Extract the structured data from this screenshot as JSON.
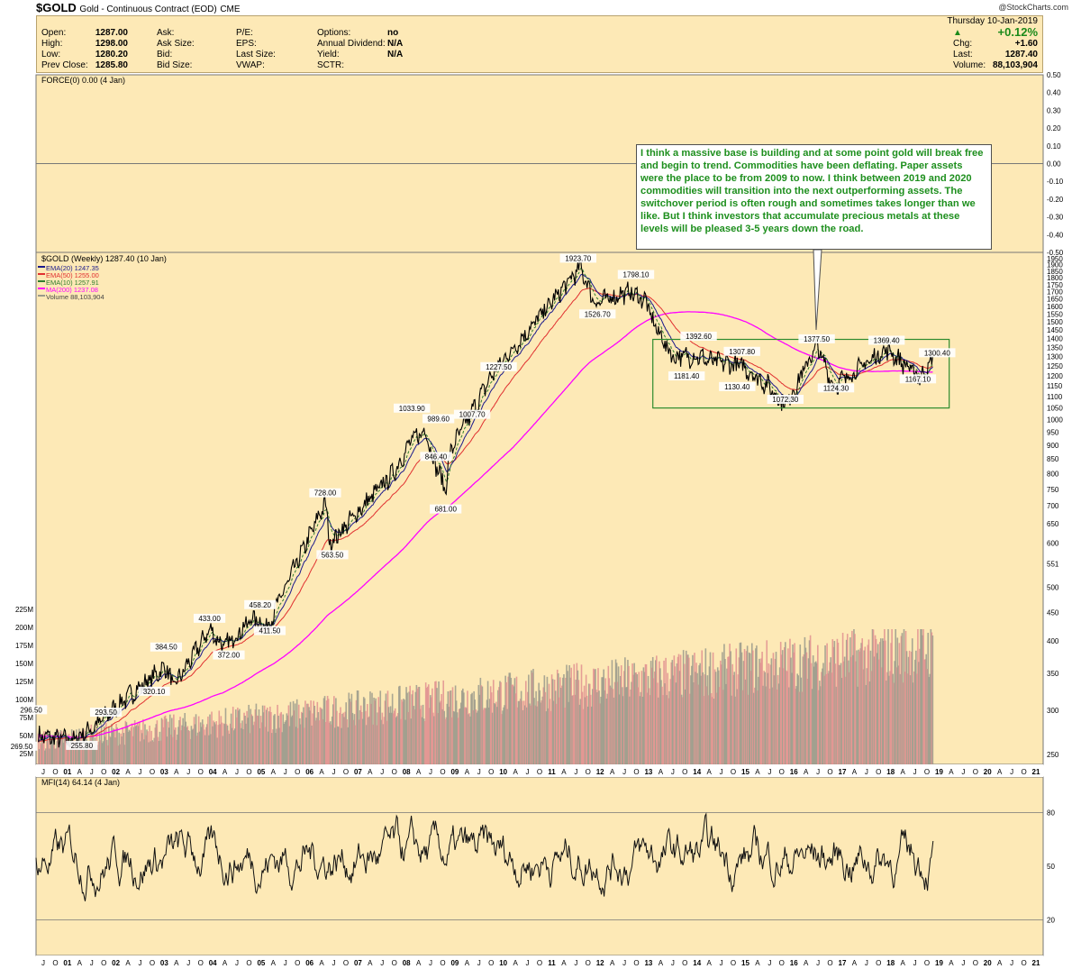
{
  "header": {
    "symbol": "$GOLD",
    "name": "Gold - Continuous Contract (EOD)",
    "exchange": "CME",
    "credit": "@StockCharts.com",
    "date": "Thursday  10-Jan-2019",
    "change_pct": "+0.12%",
    "up_arrow": "▲",
    "chg_label": "Chg:",
    "chg_value": "+1.60",
    "last_label": "Last:",
    "last_value": "1287.40",
    "volume_label": "Volume:",
    "volume_value": "88,103,904",
    "col1": [
      {
        "label": "Open:",
        "value": "1287.00"
      },
      {
        "label": "High:",
        "value": "1298.00"
      },
      {
        "label": "Low:",
        "value": "1280.20"
      },
      {
        "label": "Prev Close:",
        "value": "1285.80"
      }
    ],
    "col2": [
      "Ask:",
      "Ask Size:",
      "Bid:",
      "Bid Size:"
    ],
    "col3": [
      "P/E:",
      "EPS:",
      "Last Size:",
      "VWAP:"
    ],
    "col4": [
      {
        "label": "Options:",
        "value": "no"
      },
      {
        "label": "Annual Dividend:",
        "value": "N/A"
      },
      {
        "label": "Yield:",
        "value": "N/A"
      },
      {
        "label": "SCTR:",
        "value": ""
      }
    ]
  },
  "annotation": "I think a massive base is building and at some point gold will break free and begin to trend. Commodities have been deflating. Paper assets were the place to be from 2009 to now. I think between 2019 and 2020 commodities will transition into the next outperforming assets. The switchover period is often rough and sometimes takes longer than we like. But I think investors that accumulate precious metals at these levels will be pleased 3-5 years down the road.",
  "colors": {
    "background": "#fde9b6",
    "ema20": "#1a1a8c",
    "ema50": "#e03030",
    "ema10": "#2e7d2e",
    "ma200": "#ff00ff",
    "volume_up": "#9a9a8c",
    "volume_down": "#e09090",
    "base_box": "#2e8b2e",
    "note_text": "#1e8f1e"
  },
  "chart_data": [
    {
      "type": "line",
      "panel": "force",
      "label": "FORCE(0) 0.00 (4 Jan)",
      "ylim": [
        -0.5,
        0.5
      ],
      "yticks": [
        "0.50",
        "0.40",
        "0.30",
        "0.20",
        "0.10",
        "0.00",
        "-0.10",
        "-0.20",
        "-0.30",
        "-0.40",
        "-0.50"
      ],
      "value": 0.0
    },
    {
      "type": "line",
      "panel": "price",
      "scale": "log",
      "label": "$GOLD (Weekly) 1287.40 (10 Jan)",
      "legend": [
        {
          "name": "EMA(20) 1247.35",
          "color_key": "ema20"
        },
        {
          "name": "EMA(50) 1255.00",
          "color_key": "ema50"
        },
        {
          "name": "EMA(10) 1257.91",
          "color_key": "ema10"
        },
        {
          "name": "MA(200) 1237.08",
          "color_key": "ma200"
        },
        {
          "name": "Volume 88,103,904",
          "color_key": "volume_up"
        }
      ],
      "ylim": [
        240,
        2000
      ],
      "yticks": [
        "1950",
        "1900",
        "1850",
        "1800",
        "1750",
        "1700",
        "1650",
        "1600",
        "1550",
        "1500",
        "1450",
        "1400",
        "1350",
        "1300",
        "1250",
        "1200",
        "1150",
        "1100",
        "1050",
        "1000",
        "950",
        "900",
        "850",
        "800",
        "750",
        "700",
        "650",
        "600",
        "551",
        "500",
        "450",
        "400",
        "350",
        "300",
        "250"
      ],
      "vol_ticks": [
        "225M",
        "200M",
        "175M",
        "150M",
        "125M",
        "100M",
        "75M",
        "50M",
        "25M"
      ],
      "xticks": [
        "J",
        "O",
        "01",
        "A",
        "J",
        "O",
        "02",
        "A",
        "J",
        "O",
        "03",
        "A",
        "J",
        "O",
        "04",
        "A",
        "J",
        "O",
        "05",
        "A",
        "J",
        "O",
        "06",
        "A",
        "J",
        "O",
        "07",
        "A",
        "J",
        "O",
        "08",
        "A",
        "J",
        "O",
        "09",
        "A",
        "J",
        "O",
        "10",
        "A",
        "J",
        "O",
        "11",
        "A",
        "J",
        "O",
        "12",
        "A",
        "J",
        "O",
        "13",
        "A",
        "J",
        "O",
        "14",
        "A",
        "J",
        "O",
        "15",
        "A",
        "J",
        "O",
        "16",
        "A",
        "J",
        "O",
        "17",
        "A",
        "J",
        "O",
        "18",
        "A",
        "J",
        "O",
        "19",
        "A",
        "J",
        "O",
        "20",
        "A",
        "J",
        "O",
        "21"
      ],
      "x": [
        2000.45,
        2001.15,
        2001.6,
        2002.35,
        2003.1,
        2003.25,
        2004.0,
        2004.3,
        2004.9,
        2005.2,
        2006.4,
        2006.5,
        2007.8,
        2008.2,
        2008.5,
        2008.6,
        2008.9,
        2009.0,
        2009.9,
        2011.7,
        2012.0,
        2012.7,
        2013.05,
        2013.2,
        2013.6,
        2014.2,
        2014.3,
        2015.05,
        2015.6,
        2015.95,
        2016.6,
        2016.95,
        2018.05,
        2018.75,
        2019.02
      ],
      "close": [
        270,
        265,
        280,
        320,
        360,
        330,
        420,
        390,
        440,
        425,
        710,
        600,
        800,
        920,
        960,
        870,
        750,
        880,
        1220,
        1880,
        1620,
        1700,
        1640,
        1500,
        1300,
        1300,
        1280,
        1250,
        1150,
        1060,
        1360,
        1150,
        1340,
        1190,
        1287
      ],
      "labels": [
        {
          "text": "296.50",
          "x": 2000.3,
          "y": 296.5
        },
        {
          "text": "269.50",
          "x": 2000.1,
          "y": 255
        },
        {
          "text": "255.80",
          "x": 2001.35,
          "y": 255.8
        },
        {
          "text": "293.50",
          "x": 2001.85,
          "y": 293.5
        },
        {
          "text": "320.10",
          "x": 2002.85,
          "y": 320.1
        },
        {
          "text": "384.50",
          "x": 2003.1,
          "y": 384.5
        },
        {
          "text": "372.00",
          "x": 2004.4,
          "y": 372
        },
        {
          "text": "433.00",
          "x": 2004.0,
          "y": 433
        },
        {
          "text": "411.50",
          "x": 2005.25,
          "y": 411.5
        },
        {
          "text": "458.20",
          "x": 2005.05,
          "y": 458.2
        },
        {
          "text": "563.50",
          "x": 2006.55,
          "y": 563.5
        },
        {
          "text": "728.00",
          "x": 2006.4,
          "y": 728
        },
        {
          "text": "846.40",
          "x": 2008.7,
          "y": 846.4
        },
        {
          "text": "1033.90",
          "x": 2008.2,
          "y": 1033.9
        },
        {
          "text": "989.60",
          "x": 2008.75,
          "y": 989.6
        },
        {
          "text": "1007.70",
          "x": 2009.45,
          "y": 1007.7
        },
        {
          "text": "681.00",
          "x": 2008.9,
          "y": 681
        },
        {
          "text": "1227.50",
          "x": 2010.0,
          "y": 1227.5
        },
        {
          "text": "1923.70",
          "x": 2011.65,
          "y": 1923.7
        },
        {
          "text": "1526.70",
          "x": 2012.05,
          "y": 1526.7
        },
        {
          "text": "1798.10",
          "x": 2012.85,
          "y": 1798.1
        },
        {
          "text": "1392.60",
          "x": 2014.15,
          "y": 1392.6
        },
        {
          "text": "1181.40",
          "x": 2013.9,
          "y": 1181.4
        },
        {
          "text": "1307.80",
          "x": 2015.05,
          "y": 1307.8
        },
        {
          "text": "1130.40",
          "x": 2014.95,
          "y": 1130.4
        },
        {
          "text": "1072.30",
          "x": 2015.95,
          "y": 1072.3
        },
        {
          "text": "1377.50",
          "x": 2016.6,
          "y": 1377.5
        },
        {
          "text": "1124.30",
          "x": 2017.0,
          "y": 1124.3
        },
        {
          "text": "1369.40",
          "x": 2018.05,
          "y": 1369.4
        },
        {
          "text": "1167.10",
          "x": 2018.7,
          "y": 1167.1
        },
        {
          "text": "1300.40",
          "x": 2019.1,
          "y": 1300.4
        }
      ],
      "base_box": {
        "x": [
          2013.2,
          2019.35
        ],
        "y": [
          1050,
          1395
        ]
      }
    },
    {
      "type": "line",
      "panel": "mfi",
      "label": "MFI(14) 64.14 (4 Jan)",
      "ylim": [
        0,
        100
      ],
      "yticks": [
        "80",
        "50",
        "20"
      ],
      "value": 64.14
    }
  ]
}
